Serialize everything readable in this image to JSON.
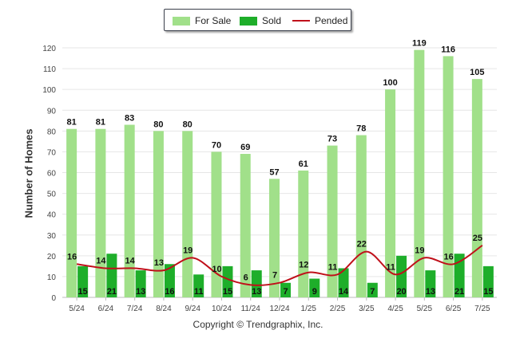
{
  "chart_data": {
    "type": "bar",
    "ylabel": "Number of Homes",
    "xlabel": "",
    "ylim": [
      0,
      120
    ],
    "yticks": [
      0,
      10,
      20,
      30,
      40,
      50,
      60,
      70,
      80,
      90,
      100,
      110,
      120
    ],
    "grid": true,
    "legend_position": "top-center",
    "categories": [
      "5/24",
      "6/24",
      "7/24",
      "8/24",
      "9/24",
      "10/24",
      "11/24",
      "12/24",
      "1/25",
      "2/25",
      "3/25",
      "4/25",
      "5/25",
      "6/25",
      "7/25"
    ],
    "series": [
      {
        "name": "For Sale",
        "type": "bar",
        "color": "#a1e08a",
        "values": [
          81,
          81,
          83,
          80,
          80,
          70,
          69,
          57,
          61,
          73,
          78,
          100,
          119,
          116,
          105
        ]
      },
      {
        "name": "Sold",
        "type": "bar",
        "color": "#1eae2a",
        "values": [
          15,
          21,
          13,
          16,
          11,
          15,
          13,
          7,
          9,
          14,
          7,
          20,
          13,
          21,
          15
        ]
      },
      {
        "name": "Pended",
        "type": "line",
        "color": "#c0101a",
        "values": [
          16,
          14,
          14,
          13,
          19,
          10,
          6,
          7,
          12,
          11,
          22,
          11,
          19,
          16,
          25
        ]
      }
    ]
  },
  "footer": {
    "copyright": "Copyright © Trendgraphix, Inc."
  }
}
